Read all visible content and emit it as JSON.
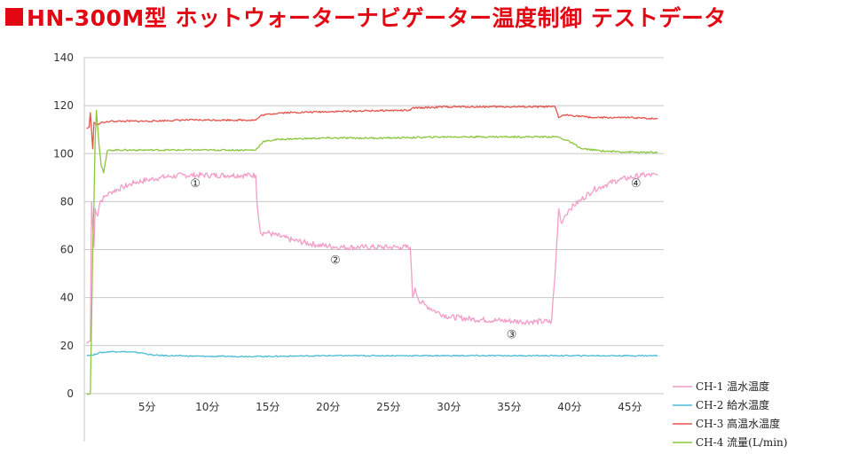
{
  "title_text": "HN-300M型 ホットウォーターナビゲーター温度制御 テストデータ",
  "colors": {
    "title": "#e30613"
  },
  "chart_data": {
    "type": "line",
    "title": "HN-300M型 ホットウォーターナビゲーター温度制御 テストデータ",
    "xlabel": "",
    "ylabel": "",
    "xlim": [
      -0.2,
      47.8
    ],
    "ylim": [
      -20,
      140
    ],
    "y_ticks": [
      0,
      20,
      40,
      60,
      80,
      100,
      120,
      140
    ],
    "x_ticks": [
      {
        "value": 5,
        "label": "5分"
      },
      {
        "value": 10,
        "label": "10分"
      },
      {
        "value": 15,
        "label": "15分"
      },
      {
        "value": 20,
        "label": "20分"
      },
      {
        "value": 25,
        "label": "25分"
      },
      {
        "value": 30,
        "label": "30分"
      },
      {
        "value": 35,
        "label": "35分"
      },
      {
        "value": 40,
        "label": "40分"
      },
      {
        "value": 45,
        "label": "45分"
      }
    ],
    "grid": true,
    "legend_position": "bottom-right",
    "series": [
      {
        "name": "CH-1 温水温度",
        "color": "#f29ec8",
        "x": [
          0,
          0.3,
          0.4,
          0.6,
          0.7,
          0.9,
          1.1,
          1.5,
          2,
          3,
          4,
          5,
          6,
          7,
          8,
          10,
          12,
          14,
          14.1,
          14.4,
          15,
          17,
          19,
          21,
          23,
          26,
          26.8,
          27,
          27.2,
          27.5,
          28,
          29,
          30,
          32,
          34,
          36,
          38.5,
          38.8,
          39.1,
          39.3,
          39.6,
          40,
          41,
          42,
          43,
          44,
          45,
          46,
          47.3
        ],
        "y": [
          21,
          22,
          80,
          61,
          77,
          74,
          80,
          82,
          84,
          86,
          88,
          89,
          90,
          90.5,
          91,
          91,
          91,
          91,
          80,
          67,
          67,
          64,
          62,
          61,
          61,
          61,
          61,
          40,
          44,
          39,
          37,
          34,
          32,
          31,
          30.5,
          30,
          30,
          50,
          77,
          71,
          74,
          77,
          81,
          85,
          87,
          89,
          90,
          91,
          91
        ]
      },
      {
        "name": "CH-2 給水温度",
        "color": "#4bbcd8",
        "x": [
          0,
          0.5,
          1,
          2,
          3,
          4.5,
          5.5,
          7,
          10,
          15,
          20,
          25,
          30,
          35,
          40,
          45,
          47.3
        ],
        "y": [
          16,
          16,
          17,
          17.5,
          17.5,
          17,
          16,
          15.8,
          15.5,
          15.5,
          15.8,
          15.8,
          15.8,
          15.8,
          15.8,
          15.8,
          15.8
        ]
      },
      {
        "name": "CH-3 高温水温度",
        "color": "#e5534b",
        "x": [
          0,
          0.2,
          0.3,
          0.5,
          0.6,
          0.8,
          1.2,
          1.5,
          2,
          5,
          8,
          10,
          12,
          14,
          14.5,
          16,
          20,
          25,
          26.8,
          27,
          30,
          35,
          38.8,
          39.1,
          39.4,
          40,
          42,
          45,
          47.3
        ],
        "y": [
          110.5,
          111,
          117,
          102,
          113,
          112,
          113,
          113,
          113.5,
          113.5,
          114,
          114,
          114,
          114,
          116,
          117,
          117.5,
          118,
          118,
          119,
          119.5,
          119.5,
          119.5,
          115,
          116,
          116,
          115,
          115,
          114.5
        ]
      },
      {
        "name": "CH-4 流量(L/min)",
        "color": "#8cc63f",
        "x": [
          0,
          0.3,
          0.5,
          0.6,
          0.7,
          0.8,
          1.0,
          1.2,
          1.4,
          1.7,
          2,
          5,
          10,
          14,
          14.6,
          16,
          20,
          25,
          30,
          35,
          39,
          40,
          41,
          43,
          46,
          47.3
        ],
        "y": [
          0,
          0,
          60,
          80,
          105,
          118,
          105,
          95,
          92,
          101,
          101.5,
          101.5,
          101.5,
          101.5,
          105,
          106,
          106.5,
          106.5,
          107,
          107,
          107,
          105,
          102,
          101,
          100.5,
          100.5
        ]
      }
    ],
    "annotations": [
      {
        "text": "①",
        "x": 9,
        "y": 86
      },
      {
        "text": "②",
        "x": 20.6,
        "y": 54
      },
      {
        "text": "③",
        "x": 35.2,
        "y": 23
      },
      {
        "text": "④",
        "x": 45.5,
        "y": 86
      }
    ]
  }
}
